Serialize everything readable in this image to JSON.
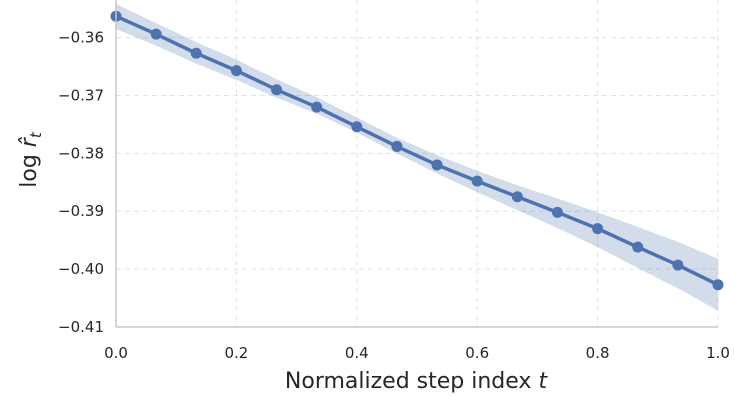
{
  "chart_data": {
    "type": "line",
    "title": "",
    "xlabel": "Normalized step index t",
    "xlabel_parts": {
      "text": "Normalized step index ",
      "var": "t"
    },
    "ylabel": "log r̂_t",
    "ylabel_parts": {
      "prefix": "log ",
      "var": "r̂",
      "sub": "t"
    },
    "xlim": [
      0.0,
      1.0
    ],
    "ylim": [
      -0.41,
      -0.3535
    ],
    "xticks": [
      0.0,
      0.2,
      0.4,
      0.6,
      0.8,
      1.0
    ],
    "xtick_labels": [
      "0.0",
      "0.2",
      "0.4",
      "0.6",
      "0.8",
      "1.0"
    ],
    "yticks": [
      -0.41,
      -0.4,
      -0.39,
      -0.38,
      -0.37,
      -0.36
    ],
    "ytick_labels": [
      "−0.41",
      "−0.40",
      "−0.39",
      "−0.38",
      "−0.37",
      "−0.36"
    ],
    "grid": true,
    "colors": {
      "line": "#4c72b0",
      "band": "#4c72b0"
    },
    "series": [
      {
        "x": [
          0.0,
          0.0667,
          0.1333,
          0.2,
          0.2667,
          0.3333,
          0.4,
          0.4667,
          0.5333,
          0.6,
          0.6667,
          0.7333,
          0.8,
          0.8667,
          0.9333,
          1.0
        ],
        "y": [
          -0.3563,
          -0.3594,
          -0.3627,
          -0.3657,
          -0.369,
          -0.372,
          -0.3754,
          -0.3788,
          -0.382,
          -0.3848,
          -0.3875,
          -0.3902,
          -0.393,
          -0.3962,
          -0.3993,
          -0.4027
        ],
        "lower": [
          -0.3585,
          -0.3614,
          -0.3645,
          -0.3673,
          -0.3704,
          -0.3731,
          -0.3764,
          -0.38,
          -0.3835,
          -0.3867,
          -0.3898,
          -0.3929,
          -0.3962,
          -0.3998,
          -0.4033,
          -0.4072
        ],
        "upper": [
          -0.3542,
          -0.3575,
          -0.3608,
          -0.3638,
          -0.3672,
          -0.3703,
          -0.3738,
          -0.3773,
          -0.3803,
          -0.383,
          -0.3855,
          -0.3878,
          -0.3902,
          -0.3927,
          -0.3953,
          -0.3982
        ]
      }
    ]
  }
}
